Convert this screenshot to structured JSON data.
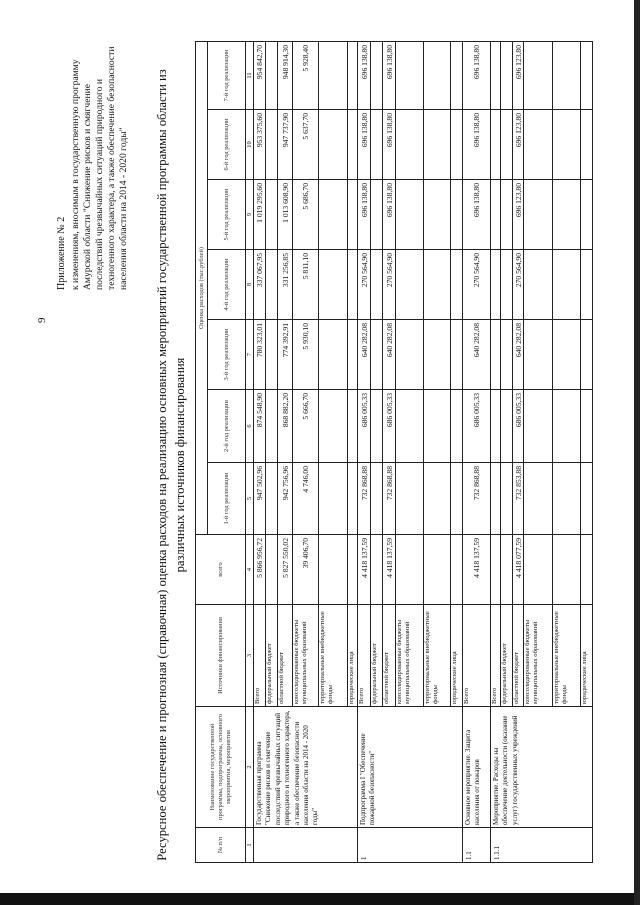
{
  "page_number": "9",
  "appendix": {
    "title": "Приложение № 2",
    "lines": [
      "к изменениям, вносимым в государственную программу",
      "Амурской области \"Снижение рисков и смягчение",
      "последствий чрезвычайных ситуаций природного и",
      "техногенного характера, а также обеспечение безопасности",
      "населения области на 2014 - 2020 годы\""
    ]
  },
  "title": {
    "line1": "Ресурсное обеспечение и прогнозная (справочная) оценка расходов на реализацию основных мероприятий государственной программы области из",
    "line2": "различных источников финансирования"
  },
  "table": {
    "headers": {
      "num": "№ п/п",
      "name": "Наименование государственной программы, подпрограммы, основного мероприятия, мероприятия",
      "source": "Источники финансирования",
      "total": "всего",
      "estimate": "Оценка расходов (тыс.рублей)",
      "years": [
        "1-й год реализации",
        "2-й год реализации",
        "3-й год реализации",
        "4-й год реализации",
        "5-й год реализации",
        "6-й год реализации",
        "7-й год реализации"
      ]
    },
    "column_numbers": [
      "1",
      "2",
      "3",
      "4",
      "5",
      "6",
      "7",
      "8",
      "9",
      "10",
      "11"
    ],
    "groups": [
      {
        "num": "",
        "name": "Государственная программа \"Снижение рисков и смягчение последствий чрезвычайных ситуаций природного и техногенного характера, а также обеспечение безопасности населения области на 2014 - 2020 годы\"",
        "rows": [
          {
            "source": "Всего",
            "values": [
              "5 866 956,72",
              "947 502,96",
              "874 548,90",
              "780 323,01",
              "337 067,95",
              "1 019 295,60",
              "953 375,60",
              "954 842,70"
            ]
          },
          {
            "source": "федеральный бюджет",
            "values": [
              "",
              "",
              "",
              "",
              "",
              "",
              "",
              ""
            ]
          },
          {
            "source": "областной бюджет",
            "values": [
              "5 827 550,02",
              "942 756,96",
              "868 882,20",
              "774 392,91",
              "331 256,85",
              "1 013 608,90",
              "947 737,90",
              "948 914,30"
            ]
          },
          {
            "source": "консолидированные бюджеты муниципальных образований",
            "values": [
              "39 406,70",
              "4 746,00",
              "5 666,70",
              "5 930,10",
              "5 811,10",
              "5 686,70",
              "5 637,70",
              "5 928,40"
            ]
          },
          {
            "source": "территориальные внебюджетные фонды",
            "values": [
              "",
              "",
              "",
              "",
              "",
              "",
              "",
              ""
            ]
          },
          {
            "source": "юридические лица",
            "values": [
              "",
              "",
              "",
              "",
              "",
              "",
              "",
              ""
            ]
          }
        ]
      },
      {
        "num": "1",
        "name": "Подпрограмма I \"Обеспечение пожарной безопасности\"",
        "rows": [
          {
            "source": "Всего",
            "values": [
              "4 418 137,59",
              "732 868,88",
              "686 005,33",
              "640 282,08",
              "270 564,90",
              "696 138,80",
              "696 138,80",
              "696 138,80"
            ]
          },
          {
            "source": "федеральный бюджет",
            "values": [
              "",
              "",
              "",
              "",
              "",
              "",
              "",
              ""
            ]
          },
          {
            "source": "областной бюджет",
            "values": [
              "4 418 137,59",
              "732 868,88",
              "686 005,33",
              "640 282,08",
              "270 564,90",
              "696 138,80",
              "696 138,80",
              "696 138,80"
            ]
          },
          {
            "source": "консолидированные бюджеты муниципальных образований",
            "values": [
              "",
              "",
              "",
              "",
              "",
              "",
              "",
              ""
            ]
          },
          {
            "source": "территориальные внебюджетные фонды",
            "values": [
              "",
              "",
              "",
              "",
              "",
              "",
              "",
              ""
            ]
          },
          {
            "source": "юридические лица",
            "values": [
              "",
              "",
              "",
              "",
              "",
              "",
              "",
              ""
            ]
          }
        ]
      },
      {
        "num": "1.1",
        "name": "Основное мероприятие. Защита населения от пожаров",
        "rows": [
          {
            "source": "Всего",
            "values": [
              "4 418 137,59",
              "732 868,88",
              "686 005,33",
              "640 282,08",
              "270 564,90",
              "696 138,80",
              "696 138,80",
              "696 138,80"
            ]
          }
        ]
      },
      {
        "num": "1.1.1",
        "name": "Мероприятие. Расходы на обеспечение деятельности (оказание услуг) государственных учреждений",
        "rows": [
          {
            "source": "Всего",
            "values": [
              "",
              "",
              "",
              "",
              "",
              "",
              "",
              ""
            ]
          },
          {
            "source": "федеральный бюджет",
            "values": [
              "",
              "",
              "",
              "",
              "",
              "",
              "",
              ""
            ]
          },
          {
            "source": "областной бюджет",
            "values": [
              "4 418 077,59",
              "732 853,88",
              "686 005,33",
              "640 282,08",
              "270 564,90",
              "696 123,80",
              "696 123,80",
              "696 123,80"
            ]
          },
          {
            "source": "консолидированные бюджеты муниципальных образований",
            "values": [
              "",
              "",
              "",
              "",
              "",
              "",
              "",
              ""
            ]
          },
          {
            "source": "территориальные внебюджетные фонды",
            "values": [
              "",
              "",
              "",
              "",
              "",
              "",
              "",
              ""
            ]
          },
          {
            "source": "юридические лица",
            "values": [
              "",
              "",
              "",
              "",
              "",
              "",
              "",
              ""
            ]
          }
        ]
      }
    ]
  }
}
